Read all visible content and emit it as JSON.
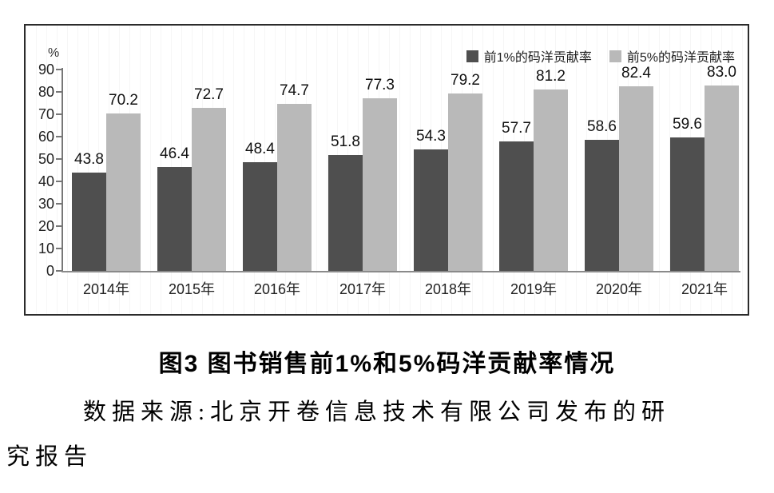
{
  "figure": {
    "caption": "图3 图书销售前1%和5%码洋贡献率情况",
    "source_line1": "数据来源:北京开卷信息技术有限公司发布的研",
    "source_line2": "究报告"
  },
  "chart_data": {
    "type": "bar",
    "categories": [
      "2014年",
      "2015年",
      "2016年",
      "2017年",
      "2018年",
      "2019年",
      "2020年",
      "2021年"
    ],
    "series": [
      {
        "name": "前1%的码洋贡献率",
        "color": "#4f4f4f",
        "values": [
          43.8,
          46.4,
          48.4,
          51.8,
          54.3,
          57.7,
          58.6,
          59.6
        ]
      },
      {
        "name": "前5%的码洋贡献率",
        "color": "#b9b9b9",
        "values": [
          70.2,
          72.7,
          74.7,
          77.3,
          79.2,
          81.2,
          82.4,
          83.0
        ]
      }
    ],
    "ylabel": "%",
    "ylim": [
      0,
      90
    ],
    "yticks": [
      0,
      10,
      20,
      30,
      40,
      50,
      60,
      70,
      80,
      90
    ],
    "grid": false,
    "legend_position": "top-right",
    "value_label_format": "one-decimal"
  }
}
